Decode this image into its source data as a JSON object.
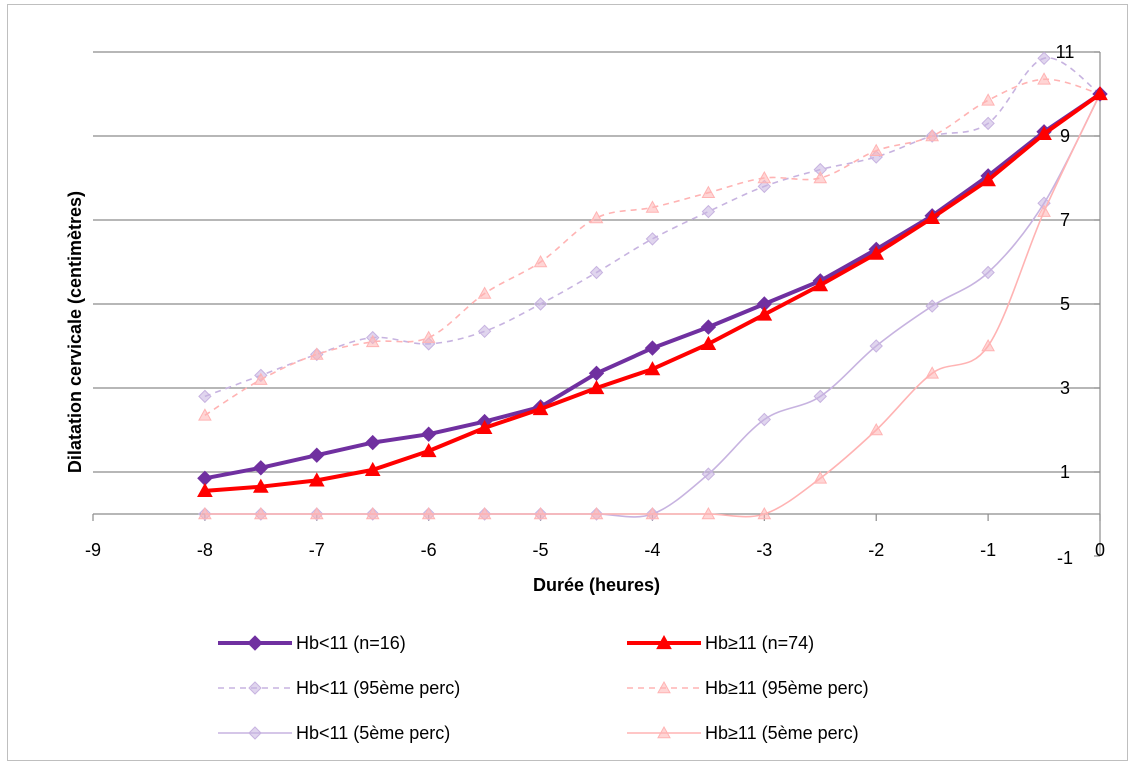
{
  "chart_data": {
    "type": "line",
    "xlabel": "Durée (heures)",
    "ylabel": "Dilatation cervicale (centimètres)",
    "xlim": [
      -9,
      0
    ],
    "ylim": [
      -1,
      11
    ],
    "x_ticks": [
      "-9",
      "-8",
      "-7",
      "-6",
      "-5",
      "-4",
      "-3",
      "-2",
      "-1",
      "0"
    ],
    "y_ticks": [
      "-1",
      "1",
      "3",
      "5",
      "7",
      "9",
      "11"
    ],
    "grid": "horizontal",
    "y_axis_side": "right",
    "legend_position": "bottom",
    "x": [
      -8,
      -7.5,
      -7,
      -6.5,
      -6,
      -5.5,
      -5,
      -4.5,
      -4,
      -3.5,
      -3,
      -2.5,
      -2,
      -1.5,
      -1,
      -0.5,
      0
    ],
    "series": [
      {
        "name": "Hb<11 (n=16)",
        "color": "#7030a0",
        "style": "solid-bold",
        "marker": "diamond",
        "values": [
          0.85,
          1.1,
          1.4,
          1.7,
          1.9,
          2.2,
          2.55,
          3.35,
          3.95,
          4.45,
          5.0,
          5.55,
          6.3,
          7.1,
          8.05,
          9.1,
          10.0
        ]
      },
      {
        "name": "Hb≥11 (n=74)",
        "color": "#ff0000",
        "style": "solid-bold",
        "marker": "triangle",
        "values": [
          0.55,
          0.65,
          0.8,
          1.05,
          1.5,
          2.05,
          2.5,
          3.0,
          3.45,
          4.05,
          4.75,
          5.45,
          6.2,
          7.05,
          7.95,
          9.05,
          10.0
        ]
      },
      {
        "name": "Hb<11 (95ème perc)",
        "color": "#c7b3e0",
        "style": "dashed",
        "marker": "diamond",
        "values": [
          2.8,
          3.3,
          3.8,
          4.2,
          4.05,
          4.35,
          5.0,
          5.75,
          6.55,
          7.2,
          7.8,
          8.2,
          8.5,
          9.0,
          9.3,
          10.85,
          10.0
        ]
      },
      {
        "name": "Hb≥11 (95ème perc)",
        "color": "#ffb3b3",
        "style": "dashed",
        "marker": "triangle",
        "values": [
          2.35,
          3.2,
          3.8,
          4.1,
          4.2,
          5.25,
          6.0,
          7.05,
          7.3,
          7.65,
          8.0,
          8.0,
          8.65,
          9.0,
          9.85,
          10.35,
          10.0
        ]
      },
      {
        "name": "Hb<11 (5ème perc)",
        "color": "#c7b3e0",
        "style": "solid-thin",
        "marker": "diamond",
        "values": [
          0.0,
          0.0,
          0.0,
          0.0,
          0.0,
          0.0,
          0.0,
          0.0,
          0.0,
          0.95,
          2.25,
          2.8,
          4.0,
          4.95,
          5.75,
          7.4,
          10.0
        ]
      },
      {
        "name": "Hb≥11 (5ème perc)",
        "color": "#ffb3b3",
        "style": "solid-thin",
        "marker": "triangle",
        "values": [
          0.0,
          0.0,
          0.0,
          0.0,
          0.0,
          0.0,
          0.0,
          0.0,
          0.0,
          0.0,
          0.0,
          0.85,
          2.0,
          3.35,
          4.0,
          7.2,
          10.0
        ]
      }
    ]
  }
}
